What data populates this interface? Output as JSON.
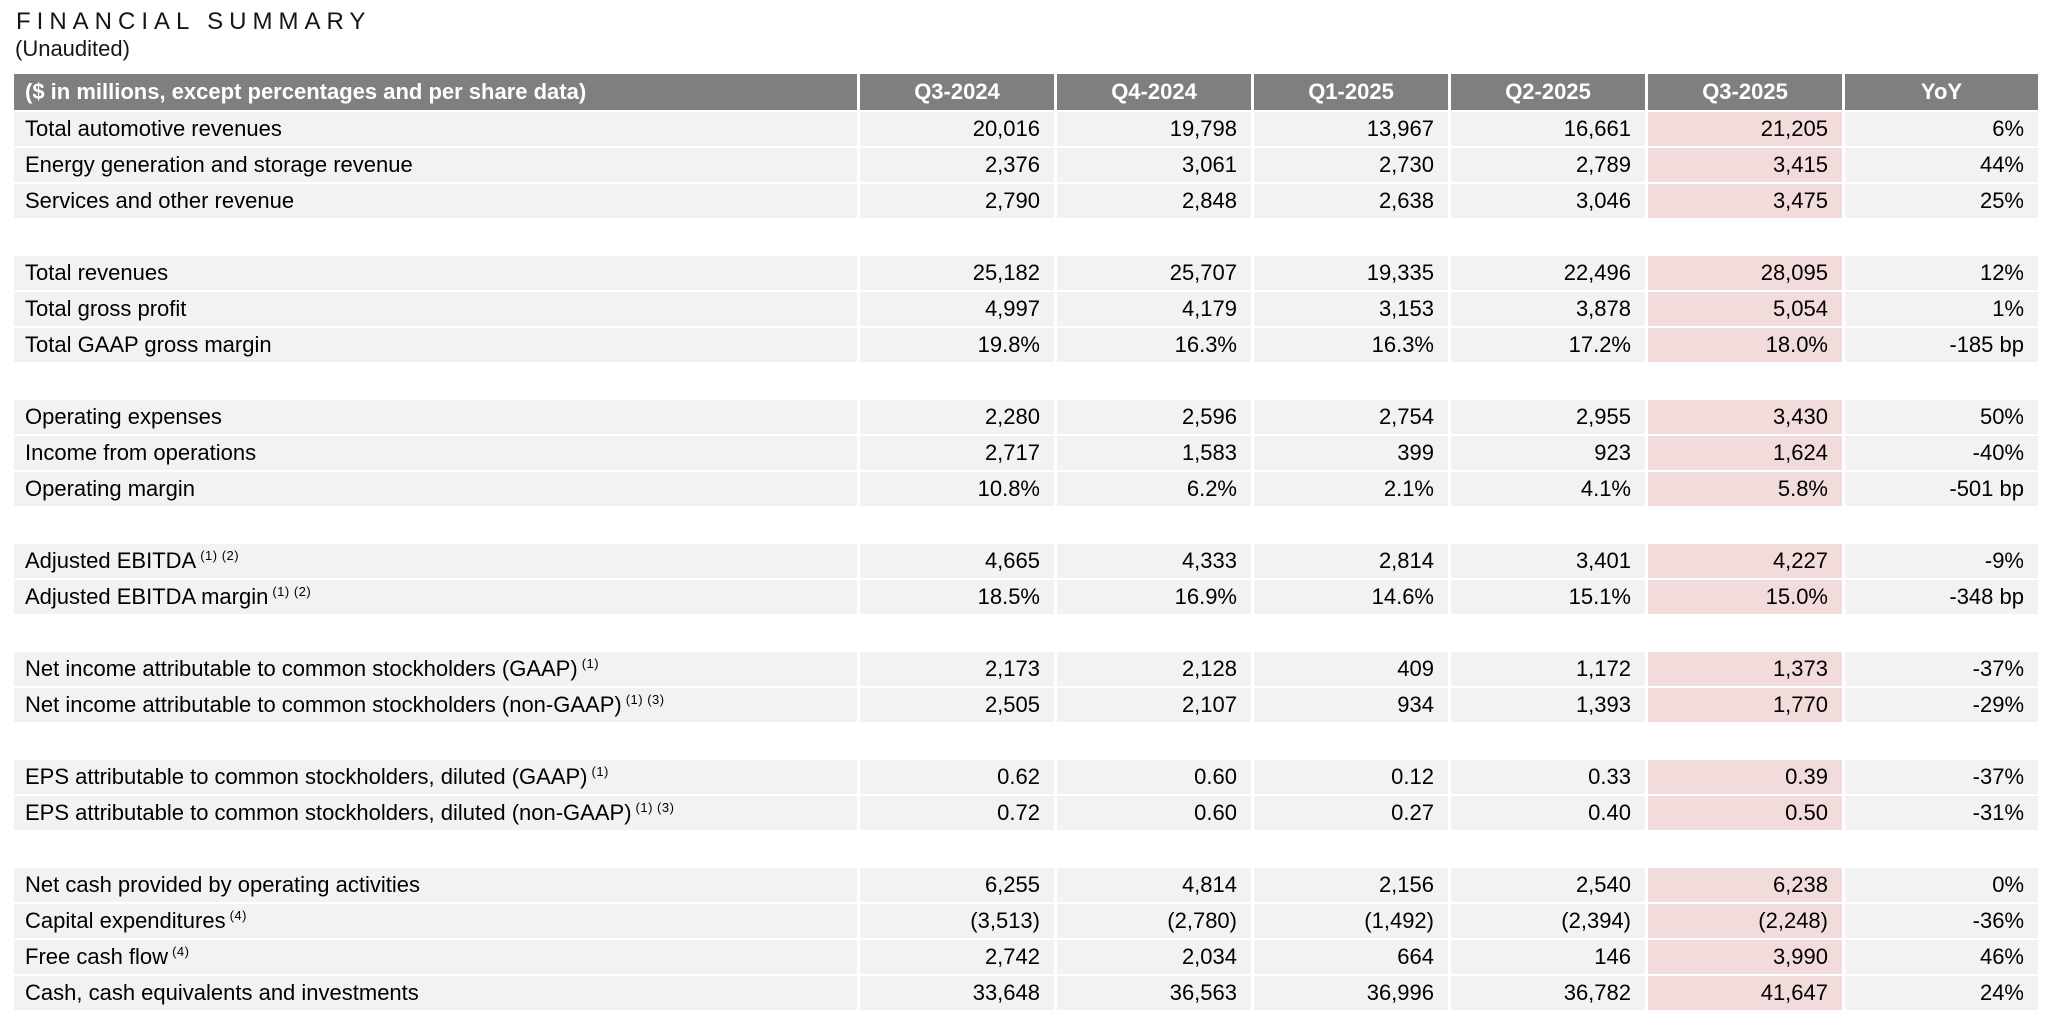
{
  "page": {
    "title": "FINANCIAL SUMMARY",
    "subtitle": "(Unaudited)"
  },
  "colors": {
    "header_bg": "#7f7f7f",
    "header_text": "#ffffff",
    "row_bg": "#f2f2f2",
    "highlight_bg": "#f2dcdb",
    "body_text": "#000000"
  },
  "table": {
    "corner_label": "($ in millions, except percentages and per share data)",
    "columns": [
      "Q3-2024",
      "Q4-2024",
      "Q1-2025",
      "Q2-2025",
      "Q3-2025",
      "YoY"
    ],
    "highlight_column": "Q3-2025",
    "highlight_column_index": 4,
    "groups": [
      {
        "rows": [
          {
            "label": "Total automotive revenues",
            "sup": "",
            "values": [
              "20,016",
              "19,798",
              "13,967",
              "16,661",
              "21,205",
              "6%"
            ]
          },
          {
            "label": "Energy generation and storage revenue",
            "sup": "",
            "values": [
              "2,376",
              "3,061",
              "2,730",
              "2,789",
              "3,415",
              "44%"
            ]
          },
          {
            "label": "Services and other revenue",
            "sup": "",
            "values": [
              "2,790",
              "2,848",
              "2,638",
              "3,046",
              "3,475",
              "25%"
            ]
          }
        ]
      },
      {
        "rows": [
          {
            "label": "Total revenues",
            "sup": "",
            "values": [
              "25,182",
              "25,707",
              "19,335",
              "22,496",
              "28,095",
              "12%"
            ]
          },
          {
            "label": "Total gross profit",
            "sup": "",
            "values": [
              "4,997",
              "4,179",
              "3,153",
              "3,878",
              "5,054",
              "1%"
            ]
          },
          {
            "label": "Total GAAP gross margin",
            "sup": "",
            "values": [
              "19.8%",
              "16.3%",
              "16.3%",
              "17.2%",
              "18.0%",
              "-185 bp"
            ]
          }
        ]
      },
      {
        "rows": [
          {
            "label": "Operating expenses",
            "sup": "",
            "values": [
              "2,280",
              "2,596",
              "2,754",
              "2,955",
              "3,430",
              "50%"
            ]
          },
          {
            "label": "Income from operations",
            "sup": "",
            "values": [
              "2,717",
              "1,583",
              "399",
              "923",
              "1,624",
              "-40%"
            ]
          },
          {
            "label": "Operating margin",
            "sup": "",
            "values": [
              "10.8%",
              "6.2%",
              "2.1%",
              "4.1%",
              "5.8%",
              "-501 bp"
            ]
          }
        ]
      },
      {
        "rows": [
          {
            "label": "Adjusted EBITDA",
            "sup": "(1) (2)",
            "values": [
              "4,665",
              "4,333",
              "2,814",
              "3,401",
              "4,227",
              "-9%"
            ]
          },
          {
            "label": "Adjusted EBITDA margin",
            "sup": "(1) (2)",
            "values": [
              "18.5%",
              "16.9%",
              "14.6%",
              "15.1%",
              "15.0%",
              "-348 bp"
            ]
          }
        ]
      },
      {
        "rows": [
          {
            "label": "Net income attributable to common stockholders (GAAP)",
            "sup": "(1)",
            "values": [
              "2,173",
              "2,128",
              "409",
              "1,172",
              "1,373",
              "-37%"
            ]
          },
          {
            "label": "Net income attributable to common stockholders (non-GAAP)",
            "sup": "(1) (3)",
            "values": [
              "2,505",
              "2,107",
              "934",
              "1,393",
              "1,770",
              "-29%"
            ]
          }
        ]
      },
      {
        "rows": [
          {
            "label": "EPS attributable to common stockholders, diluted (GAAP)",
            "sup": "(1)",
            "values": [
              "0.62",
              "0.60",
              "0.12",
              "0.33",
              "0.39",
              "-37%"
            ]
          },
          {
            "label": "EPS attributable to common stockholders, diluted (non-GAAP)",
            "sup": "(1) (3)",
            "values": [
              "0.72",
              "0.60",
              "0.27",
              "0.40",
              "0.50",
              "-31%"
            ]
          }
        ]
      },
      {
        "rows": [
          {
            "label": "Net cash provided by operating activities",
            "sup": "",
            "values": [
              "6,255",
              "4,814",
              "2,156",
              "2,540",
              "6,238",
              "0%"
            ]
          },
          {
            "label": "Capital expenditures",
            "sup": "(4)",
            "values": [
              "(3,513)",
              "(2,780)",
              "(1,492)",
              "(2,394)",
              "(2,248)",
              "-36%"
            ]
          },
          {
            "label": "Free cash flow",
            "sup": "(4)",
            "values": [
              "2,742",
              "2,034",
              "664",
              "146",
              "3,990",
              "46%"
            ]
          },
          {
            "label": "Cash, cash equivalents and investments",
            "sup": "",
            "values": [
              "33,648",
              "36,563",
              "36,996",
              "36,782",
              "41,647",
              "24%"
            ]
          }
        ]
      }
    ]
  }
}
